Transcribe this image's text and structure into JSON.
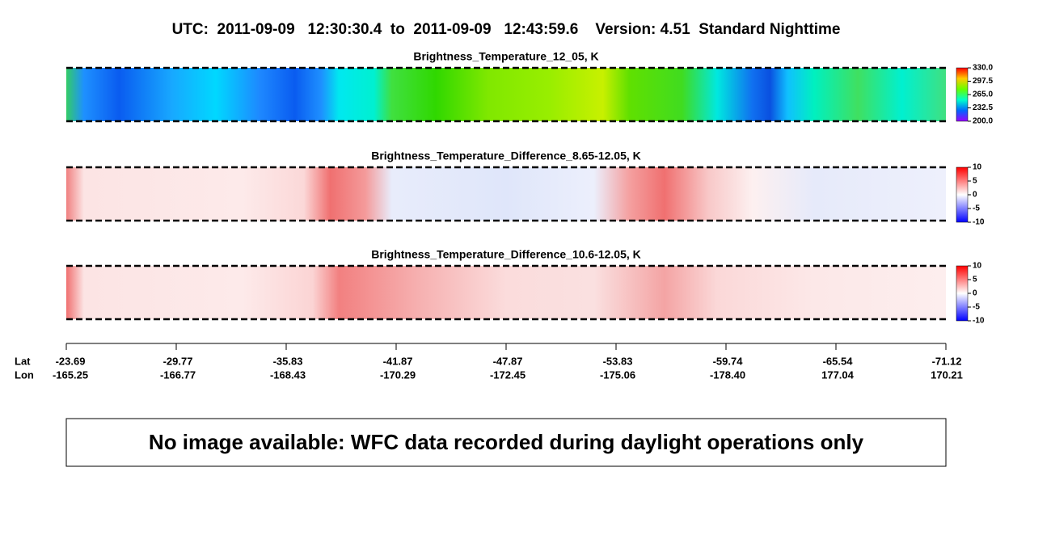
{
  "header": {
    "title": "UTC:  2011-09-09   12:30:30.4  to  2011-09-09   12:43:59.6    Version: 4.51  Standard Nighttime"
  },
  "panels": [
    {
      "title": "Brightness_Temperature_12_05, K",
      "colorbar_ticks": [
        "330.0",
        "297.5",
        "265.0",
        "232.5",
        "200.0"
      ]
    },
    {
      "title": "Brightness_Temperature_Difference_8.65-12.05, K",
      "colorbar_ticks": [
        "10",
        "5",
        "0",
        "-5",
        "-10"
      ]
    },
    {
      "title": "Brightness_Temperature_Difference_10.6-12.05, K",
      "colorbar_ticks": [
        "10",
        "5",
        "0",
        "-5",
        "-10"
      ]
    }
  ],
  "axis": {
    "lat_label": "Lat",
    "lon_label": "Lon",
    "lat": [
      "-23.69",
      "-29.77",
      "-35.83",
      "-41.87",
      "-47.87",
      "-53.83",
      "-59.74",
      "-65.54",
      "-71.12"
    ],
    "lon": [
      "-165.25",
      "-166.77",
      "-168.43",
      "-170.29",
      "-172.45",
      "-175.06",
      "-178.40",
      "177.04",
      "170.21"
    ]
  },
  "message": "No image available: WFC data recorded during daylight operations only"
}
